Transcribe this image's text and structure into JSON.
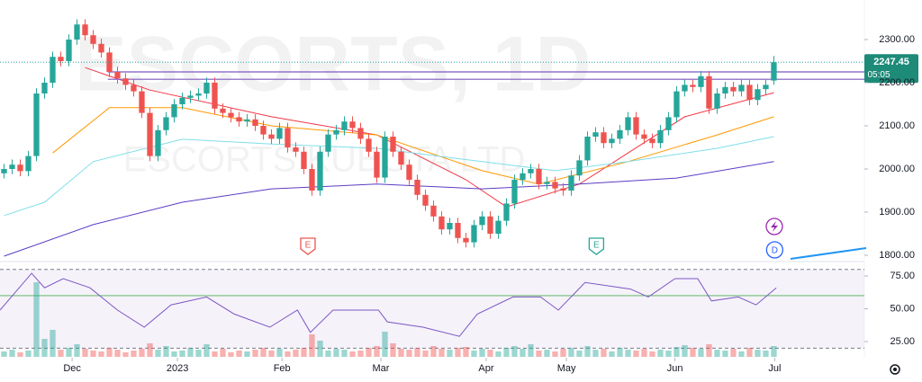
{
  "chart_data": {
    "type": "candlestick",
    "title": "ESCORTS, 1D",
    "subtitle": "ESCORTS KUBOTA LTD",
    "xlim": [
      -0.5,
      106.17
    ],
    "ylim": [
      1787.5,
      2391.7
    ],
    "xticks": [
      {
        "value": 8.4,
        "label": "Dec"
      },
      {
        "value": 21.4,
        "label": "2023"
      },
      {
        "value": 34.3,
        "label": "Feb"
      },
      {
        "value": 46.5,
        "label": "Mar"
      },
      {
        "value": 59.5,
        "label": "Apr"
      },
      {
        "value": 69.4,
        "label": "May"
      },
      {
        "value": 82.8,
        "label": "Jun"
      },
      {
        "value": 95.1,
        "label": "Jul"
      }
    ],
    "yticks": [
      {
        "value": 1800,
        "label": "1800.00"
      },
      {
        "value": 1900,
        "label": "1900.00"
      },
      {
        "value": 2000,
        "label": "2000.00"
      },
      {
        "value": 2100,
        "label": "2100.00"
      },
      {
        "value": 2200,
        "label": "2200.00"
      },
      {
        "value": 2300,
        "label": "2300.00"
      }
    ],
    "up_color": "#26a69a",
    "down_color": "#ef5350",
    "open": [
      1990,
      2000,
      2010,
      1995,
      2030,
      2175,
      2200,
      2260,
      2250,
      2300,
      2335,
      2310,
      2290,
      2270,
      2225,
      2210,
      2195,
      2180,
      2130,
      2030,
      2090,
      2120,
      2150,
      2165,
      2170,
      2175,
      2200,
      2140,
      2130,
      2120,
      2110,
      2115,
      2100,
      2080,
      2070,
      2095,
      2050,
      2040,
      2000,
      1950,
      2040,
      2080,
      2090,
      2110,
      2095,
      2070,
      2040,
      1980,
      2075,
      2040,
      2010,
      1975,
      1940,
      1915,
      1890,
      1860,
      1875,
      1840,
      1830,
      1870,
      1890,
      1850,
      1880,
      1920,
      1975,
      1990,
      2000,
      1965,
      1970,
      1955,
      1950,
      1985,
      2020,
      2075,
      2085,
      2060,
      2070,
      2090,
      2120,
      2080,
      2070,
      2060,
      2090,
      2120,
      2180,
      2195,
      2190,
      2215,
      2140,
      2175,
      2190,
      2180,
      2195,
      2160,
      2185,
      2205
    ],
    "high": [
      2012,
      2022,
      2022,
      2042,
      2187,
      2212,
      2272,
      2272,
      2312,
      2347,
      2347,
      2322,
      2302,
      2282,
      2237,
      2222,
      2207,
      2192,
      2142,
      2102,
      2132,
      2162,
      2177,
      2182,
      2187,
      2212,
      2212,
      2152,
      2142,
      2132,
      2127,
      2127,
      2112,
      2092,
      2107,
      2107,
      2062,
      2052,
      2012,
      2052,
      2092,
      2102,
      2122,
      2122,
      2107,
      2082,
      2052,
      2087,
      2087,
      2052,
      2022,
      1987,
      1952,
      1927,
      1902,
      1887,
      1887,
      1852,
      1882,
      1902,
      1902,
      1892,
      1932,
      1987,
      2002,
      2012,
      2012,
      1982,
      1982,
      1967,
      1997,
      2032,
      2087,
      2097,
      2097,
      2082,
      2102,
      2132,
      2132,
      2092,
      2082,
      2102,
      2132,
      2192,
      2207,
      2207,
      2227,
      2227,
      2187,
      2202,
      2202,
      2207,
      2207,
      2197,
      2207,
      2262
    ],
    "low": [
      1978,
      1988,
      1983,
      1983,
      2018,
      2163,
      2188,
      2238,
      2238,
      2288,
      2298,
      2278,
      2258,
      2213,
      2198,
      2183,
      2168,
      2118,
      2018,
      2018,
      2078,
      2108,
      2138,
      2153,
      2158,
      2163,
      2128,
      2118,
      2108,
      2098,
      2098,
      2088,
      2068,
      2058,
      2058,
      2038,
      2028,
      1988,
      1938,
      1938,
      2028,
      2068,
      2078,
      2083,
      2058,
      2028,
      1968,
      1968,
      2028,
      1998,
      1963,
      1928,
      1903,
      1878,
      1848,
      1848,
      1828,
      1818,
      1818,
      1858,
      1838,
      1838,
      1868,
      1908,
      1963,
      1978,
      1953,
      1953,
      1943,
      1938,
      1938,
      1973,
      2008,
      2063,
      2048,
      2048,
      2058,
      2078,
      2068,
      2058,
      2048,
      2048,
      2078,
      2108,
      2168,
      2178,
      2178,
      2128,
      2128,
      2163,
      2168,
      2168,
      2148,
      2148,
      2173,
      2195
    ],
    "close": [
      2000,
      2010,
      1995,
      2030,
      2175,
      2200,
      2260,
      2250,
      2300,
      2335,
      2310,
      2290,
      2270,
      2225,
      2210,
      2195,
      2180,
      2130,
      2030,
      2090,
      2120,
      2150,
      2165,
      2170,
      2175,
      2200,
      2140,
      2130,
      2120,
      2110,
      2115,
      2100,
      2080,
      2070,
      2095,
      2050,
      2040,
      2000,
      1950,
      2040,
      2080,
      2090,
      2110,
      2095,
      2070,
      2040,
      1980,
      2075,
      2040,
      2010,
      1975,
      1940,
      1915,
      1890,
      1860,
      1875,
      1840,
      1830,
      1870,
      1890,
      1850,
      1880,
      1920,
      1975,
      1990,
      2000,
      1965,
      1970,
      1955,
      1950,
      1985,
      2020,
      2075,
      2085,
      2060,
      2070,
      2090,
      2120,
      2080,
      2070,
      2060,
      2090,
      2120,
      2180,
      2195,
      2190,
      2215,
      2140,
      2175,
      2190,
      2180,
      2195,
      2160,
      2185,
      2195,
      2247.45
    ],
    "lines": [
      {
        "color": "#f23645",
        "x": [
          10,
          18,
          33,
          46,
          57,
          62,
          71,
          77,
          84,
          95
        ],
        "values": [
          2235,
          2183,
          2121,
          2079,
          1975,
          1912,
          1965,
          2037,
          2121,
          2177
        ]
      },
      {
        "color": "#ff9800",
        "x": [
          6,
          13,
          22,
          33,
          46,
          59,
          66,
          77,
          88,
          95
        ],
        "values": [
          2037,
          2142,
          2142,
          2100,
          2079,
          1996,
          1965,
          2017,
          2079,
          2121
        ]
      },
      {
        "color": "#80deea",
        "x": [
          0,
          5,
          11,
          22,
          33,
          46,
          59,
          68,
          77,
          88,
          95
        ],
        "values": [
          1892,
          1923,
          2017,
          2069,
          2058,
          2048,
          2017,
          1996,
          2017,
          2048,
          2075
        ]
      },
      {
        "color": "#5b3cc4",
        "x": [
          0,
          11,
          22,
          33,
          46,
          59,
          71,
          83,
          95
        ],
        "values": [
          1798,
          1871,
          1923,
          1954,
          1965,
          1954,
          1965,
          1979,
          2017
        ]
      }
    ],
    "levels": [
      {
        "from": 12.8,
        "value": 2225,
        "color": "#7e57c2"
      },
      {
        "from": 12.8,
        "value": 2208,
        "color": "#7e57c2"
      }
    ],
    "last_price": 2247.45,
    "countdown": "05:05",
    "events": [
      {
        "label": "E",
        "x": 37.5,
        "color": "#ef5350"
      },
      {
        "label": "E",
        "x": 73.1,
        "color": "#26a69a"
      },
      {
        "label": "D",
        "x": 95.1,
        "color": "#2962ff"
      }
    ],
    "volume": [
      6,
      8,
      5,
      7,
      83,
      20,
      30,
      8,
      10,
      14,
      9,
      7,
      6,
      10,
      8,
      5,
      7,
      9,
      15,
      8,
      12,
      6,
      7,
      10,
      8,
      14,
      6,
      9,
      5,
      7,
      6,
      8,
      10,
      7,
      9,
      6,
      8,
      10,
      25,
      18,
      7,
      9,
      8,
      6,
      7,
      10,
      12,
      28,
      15,
      9,
      8,
      10,
      7,
      12,
      9,
      8,
      10,
      11,
      7,
      9,
      8,
      6,
      10,
      12,
      9,
      14,
      7,
      8,
      6,
      9,
      10,
      7,
      12,
      8,
      9,
      6,
      10,
      8,
      7,
      9,
      6,
      8,
      7,
      11,
      13,
      10,
      9,
      14,
      8,
      7,
      9,
      6,
      10,
      8,
      7,
      12
    ],
    "rsi": {
      "color": "#7e57c2",
      "ylim": [
        12.7,
        85.3
      ],
      "band": [
        20,
        80
      ],
      "midline": 60,
      "yticks": [
        {
          "value": 25,
          "label": "25.00"
        },
        {
          "value": 50,
          "label": "50.00"
        },
        {
          "value": 75,
          "label": "75.00"
        }
      ],
      "x": [
        -0.5,
        3.4,
        5,
        7.3,
        10.6,
        14,
        17.3,
        20.6,
        25,
        28.4,
        32.8,
        36.2,
        37.8,
        40.6,
        46.2,
        47.3,
        51.7,
        56.2,
        58.4,
        62.8,
        66.2,
        68.4,
        71.7,
        77.3,
        79.5,
        82.8,
        85.6,
        87.3,
        90.6,
        92.8,
        95.3
      ],
      "values": [
        49,
        77,
        66,
        73,
        66,
        49,
        36,
        53,
        59,
        46,
        36,
        49,
        32,
        49,
        49,
        40,
        36,
        29,
        46,
        59,
        59,
        49,
        70,
        65,
        59,
        73,
        73,
        56,
        59,
        53,
        66
      ]
    }
  }
}
